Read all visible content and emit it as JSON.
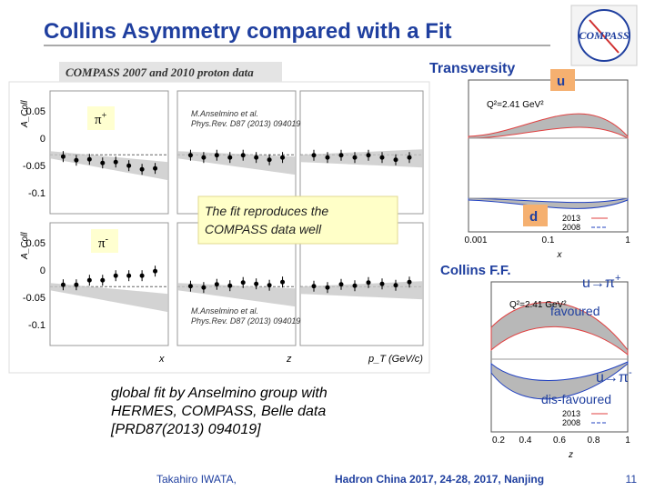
{
  "header": {
    "title": "Collins Asymmetry compared with a Fit",
    "logo": "COMPASS"
  },
  "left_panel": {
    "caption": "COMPASS 2007 and 2010 proton data",
    "pion_plus": {
      "symbol": "π",
      "charge": "+"
    },
    "pion_minus": {
      "symbol": "π",
      "charge": "-"
    },
    "y_label": "A_Coll",
    "y_ticks": [
      "0.05",
      "0",
      "-0.05",
      "-0.1"
    ],
    "citation": [
      "M.Anselmino et al.",
      "Phys.Rev. D87 (2013) 094019"
    ],
    "x_labels": [
      "x",
      "z",
      "p_T (GeV/c)"
    ],
    "callout": [
      "The fit  reproduces the",
      "COMPASS data well"
    ]
  },
  "transversity": {
    "title": "Transversity",
    "u_label": "u",
    "d_label": "d",
    "scale": "Q²=2.41 GeV²",
    "legend": [
      "2013",
      "2008"
    ],
    "x_ticks": [
      "0.001",
      "0.1",
      "1"
    ],
    "x_label": "x"
  },
  "collins": {
    "title": "Collins F.F.",
    "fav": {
      "symbol": "u→π",
      "charge": "+",
      "note": "favoured"
    },
    "disfav": {
      "symbol": "u→π",
      "charge": "-",
      "note": "dis-favoured"
    },
    "scale": "Q²=2.41 GeV²",
    "legend": [
      "2013",
      "2008"
    ],
    "x_ticks": [
      "0.2",
      "0.4",
      "0.6",
      "0.8",
      "1"
    ],
    "x_label": "z"
  },
  "note": [
    "global fit by Anselmino group with",
    "HERMES, COMPASS, Belle data",
    "[PRD87(2013) 094019]"
  ],
  "footer": {
    "author": "Takahiro IWATA,",
    "event": "Hadron China 2017, 24-28, 2017, Nanjing",
    "page": "11"
  }
}
